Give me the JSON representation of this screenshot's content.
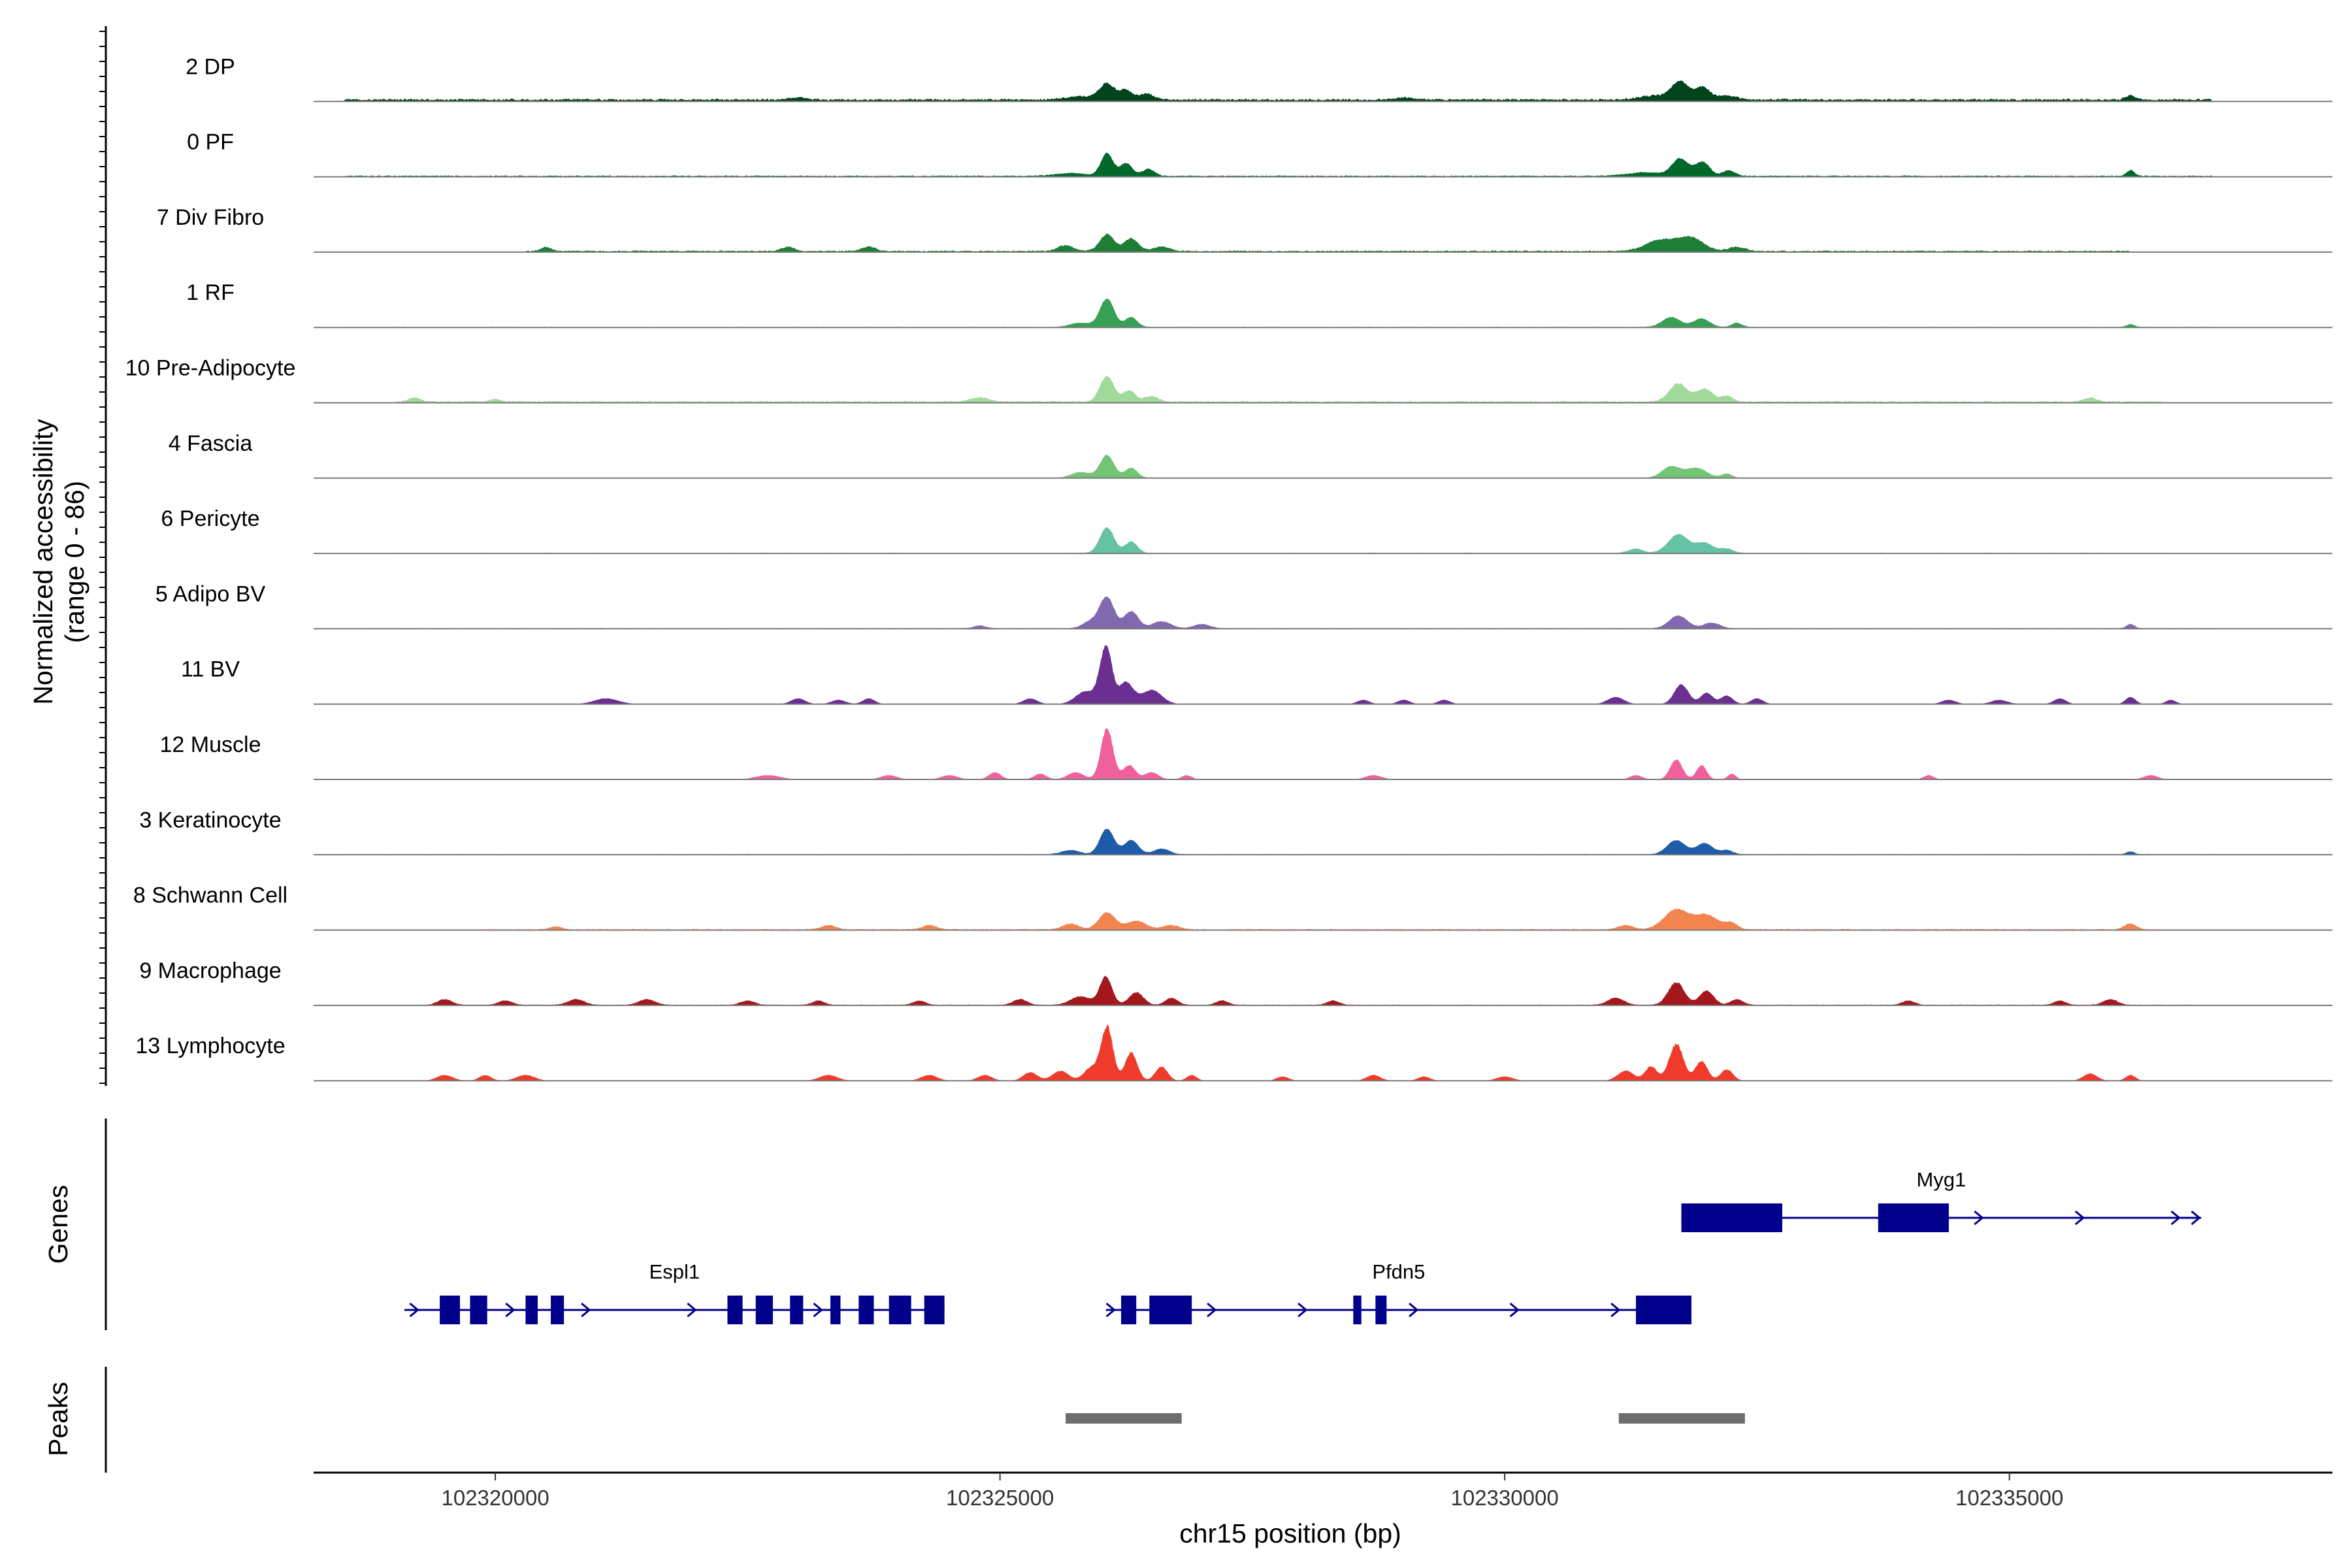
{
  "chart_data": {
    "type": "area",
    "chromosome": "chr15",
    "xlabel": "chr15 position (bp)",
    "ylabel": [
      "Normalized accessibility",
      "(range 0 - 86)"
    ],
    "y_range": [
      0,
      86
    ],
    "xlim": [
      102318200,
      102338200
    ],
    "x_ticks": [
      102320000,
      102325000,
      102330000,
      102335000
    ],
    "x_tick_labels": [
      "102320000",
      "102325000",
      "102330000",
      "102335000"
    ],
    "tracks": [
      {
        "name": "2 DP",
        "color": "#00441B",
        "scale": 0.35,
        "noise": 0.05,
        "background": [
          [
            102318500,
            102337000,
            2
          ]
        ],
        "peaks": [
          [
            102325830,
            150,
            2.5
          ],
          [
            102326060,
            70,
            11
          ],
          [
            102326240,
            60,
            7
          ],
          [
            102326450,
            80,
            4
          ],
          [
            102331520,
            170,
            3
          ],
          [
            102331740,
            80,
            12
          ],
          [
            102331960,
            70,
            9
          ],
          [
            102332200,
            90,
            3
          ],
          [
            102336200,
            50,
            3
          ],
          [
            102323000,
            100,
            1.5
          ],
          [
            102329000,
            100,
            1.5
          ]
        ]
      },
      {
        "name": "0 PF",
        "color": "#00692A",
        "scale": 0.35,
        "noise": 0.05,
        "background": [
          [
            102318500,
            102337000,
            1
          ]
        ],
        "peaks": [
          [
            102325700,
            150,
            2
          ],
          [
            102326060,
            60,
            16
          ],
          [
            102326250,
            60,
            9
          ],
          [
            102326470,
            60,
            5
          ],
          [
            102331400,
            180,
            2.5
          ],
          [
            102331740,
            80,
            12
          ],
          [
            102331960,
            70,
            10
          ],
          [
            102332220,
            60,
            4
          ],
          [
            102336200,
            40,
            4
          ]
        ]
      },
      {
        "name": "7 Div Fibro",
        "color": "#1E7E35",
        "scale": 0.35,
        "noise": 0.05,
        "background": [
          [
            102320300,
            102336200,
            1.2
          ]
        ],
        "peaks": [
          [
            102320500,
            50,
            3
          ],
          [
            102322900,
            60,
            3
          ],
          [
            102323700,
            70,
            3
          ],
          [
            102325650,
            80,
            4
          ],
          [
            102326060,
            70,
            12
          ],
          [
            102326300,
            70,
            9
          ],
          [
            102326600,
            80,
            3
          ],
          [
            102331550,
            150,
            8
          ],
          [
            102331850,
            120,
            9
          ],
          [
            102332300,
            80,
            3
          ]
        ]
      },
      {
        "name": "1 RF",
        "color": "#37A055",
        "scale": 0.35,
        "noise": 0.05,
        "background": [
          [
            102318500,
            102337000,
            0.5
          ]
        ],
        "peaks": [
          [
            102325800,
            100,
            3
          ],
          [
            102326060,
            70,
            20
          ],
          [
            102326300,
            60,
            7
          ],
          [
            102331650,
            90,
            7
          ],
          [
            102331950,
            80,
            6
          ],
          [
            102332300,
            50,
            3
          ],
          [
            102336200,
            40,
            2
          ]
        ]
      },
      {
        "name": "10 Pre-Adipocyte",
        "color": "#A1D99B",
        "scale": 0.35,
        "noise": 0.05,
        "background": [
          [
            102319000,
            102336500,
            1.2
          ]
        ],
        "peaks": [
          [
            102319200,
            60,
            3
          ],
          [
            102320000,
            50,
            2
          ],
          [
            102324800,
            90,
            3
          ],
          [
            102326060,
            70,
            18
          ],
          [
            102326280,
            60,
            8
          ],
          [
            102326500,
            70,
            4
          ],
          [
            102331720,
            90,
            13
          ],
          [
            102331980,
            80,
            9
          ],
          [
            102332200,
            60,
            4
          ],
          [
            102335800,
            60,
            3
          ]
        ]
      },
      {
        "name": "4 Fascia",
        "color": "#74C476",
        "scale": 0.35,
        "noise": 0.05,
        "background": [
          [
            102318500,
            102337000,
            0.4
          ]
        ],
        "peaks": [
          [
            102325800,
            90,
            4
          ],
          [
            102326060,
            70,
            16
          ],
          [
            102326300,
            60,
            7
          ],
          [
            102331650,
            90,
            8
          ],
          [
            102331900,
            100,
            7
          ],
          [
            102332200,
            50,
            3
          ]
        ]
      },
      {
        "name": "6 Pericyte",
        "color": "#66C2A5",
        "scale": 0.35,
        "noise": 0.05,
        "background": [
          [
            102319000,
            102336500,
            0.6
          ]
        ],
        "peaks": [
          [
            102326060,
            70,
            18
          ],
          [
            102326300,
            60,
            8
          ],
          [
            102331300,
            70,
            3
          ],
          [
            102331720,
            100,
            13
          ],
          [
            102331980,
            90,
            7
          ],
          [
            102332200,
            60,
            3
          ]
        ]
      },
      {
        "name": "5 Adipo BV",
        "color": "#8069AE",
        "scale": 0.35,
        "noise": 0.05,
        "background": [
          [
            102318800,
            102337000,
            0.5
          ]
        ],
        "peaks": [
          [
            102324800,
            60,
            2
          ],
          [
            102325900,
            80,
            5
          ],
          [
            102326060,
            70,
            22
          ],
          [
            102326300,
            70,
            12
          ],
          [
            102326600,
            90,
            5
          ],
          [
            102327000,
            80,
            3
          ],
          [
            102331720,
            90,
            9
          ],
          [
            102332050,
            80,
            4
          ],
          [
            102336200,
            40,
            3
          ]
        ]
      },
      {
        "name": "11 BV",
        "color": "#6A2F90",
        "scale": 0.35,
        "noise": 0.08,
        "background": [],
        "peaks": [
          [
            102321100,
            120,
            4
          ],
          [
            102323000,
            70,
            4
          ],
          [
            102323400,
            70,
            3
          ],
          [
            102323700,
            60,
            4
          ],
          [
            102325300,
            70,
            4
          ],
          [
            102325850,
            100,
            9
          ],
          [
            102326050,
            60,
            40
          ],
          [
            102326250,
            70,
            15
          ],
          [
            102326500,
            100,
            10
          ],
          [
            102328600,
            60,
            3
          ],
          [
            102329000,
            60,
            3
          ],
          [
            102329400,
            60,
            3
          ],
          [
            102331100,
            80,
            5
          ],
          [
            102331750,
            70,
            14
          ],
          [
            102332000,
            60,
            8
          ],
          [
            102332200,
            60,
            6
          ],
          [
            102332500,
            60,
            4
          ],
          [
            102334400,
            70,
            3
          ],
          [
            102334900,
            80,
            3
          ],
          [
            102335500,
            60,
            4
          ],
          [
            102336200,
            50,
            5
          ],
          [
            102336600,
            50,
            3
          ]
        ]
      },
      {
        "name": "12 Muscle",
        "color": "#F0609C",
        "scale": 0.35,
        "noise": 0.08,
        "background": [],
        "peaks": [
          [
            102322700,
            120,
            3
          ],
          [
            102323900,
            80,
            3
          ],
          [
            102324500,
            80,
            3
          ],
          [
            102324950,
            60,
            5
          ],
          [
            102325400,
            60,
            4
          ],
          [
            102325750,
            80,
            5
          ],
          [
            102326060,
            60,
            36
          ],
          [
            102326280,
            60,
            10
          ],
          [
            102326500,
            70,
            5
          ],
          [
            102326850,
            50,
            3
          ],
          [
            102328700,
            80,
            3
          ],
          [
            102331300,
            60,
            3
          ],
          [
            102331700,
            60,
            14
          ],
          [
            102331950,
            50,
            10
          ],
          [
            102332250,
            40,
            4
          ],
          [
            102334200,
            50,
            3
          ],
          [
            102336400,
            70,
            3
          ]
        ]
      },
      {
        "name": "3 Keratinocyte",
        "color": "#1D5CA8",
        "scale": 0.35,
        "noise": 0.05,
        "background": [
          [
            102318500,
            102337000,
            0.5
          ]
        ],
        "peaks": [
          [
            102325700,
            90,
            3
          ],
          [
            102326060,
            70,
            18
          ],
          [
            102326300,
            70,
            10
          ],
          [
            102326600,
            80,
            4
          ],
          [
            102331700,
            90,
            10
          ],
          [
            102331980,
            80,
            8
          ],
          [
            102332200,
            60,
            3
          ],
          [
            102336200,
            40,
            2
          ]
        ]
      },
      {
        "name": "8 Schwann Cell",
        "color": "#F2854F",
        "scale": 0.35,
        "noise": 0.06,
        "background": [
          [
            102319800,
            102336500,
            0.8
          ]
        ],
        "peaks": [
          [
            102320600,
            60,
            2
          ],
          [
            102323300,
            70,
            3
          ],
          [
            102324300,
            70,
            3
          ],
          [
            102325700,
            80,
            4
          ],
          [
            102326060,
            80,
            12
          ],
          [
            102326350,
            100,
            6
          ],
          [
            102326700,
            80,
            3
          ],
          [
            102331200,
            70,
            3
          ],
          [
            102331700,
            120,
            14
          ],
          [
            102332000,
            120,
            10
          ],
          [
            102332250,
            60,
            4
          ],
          [
            102336200,
            60,
            4
          ]
        ]
      },
      {
        "name": "9 Macrophage",
        "color": "#A4171C",
        "scale": 0.35,
        "noise": 0.08,
        "background": [
          [
            102319300,
            102336800,
            0.6
          ]
        ],
        "peaks": [
          [
            102319500,
            70,
            4
          ],
          [
            102320100,
            70,
            3
          ],
          [
            102320800,
            80,
            4
          ],
          [
            102321500,
            80,
            4
          ],
          [
            102322500,
            70,
            3
          ],
          [
            102323200,
            60,
            3
          ],
          [
            102324200,
            60,
            3
          ],
          [
            102325200,
            70,
            4
          ],
          [
            102325800,
            100,
            6
          ],
          [
            102326050,
            60,
            20
          ],
          [
            102326350,
            70,
            9
          ],
          [
            102326700,
            60,
            5
          ],
          [
            102327200,
            60,
            3
          ],
          [
            102328300,
            60,
            3
          ],
          [
            102331100,
            80,
            5
          ],
          [
            102331700,
            80,
            16
          ],
          [
            102332000,
            70,
            10
          ],
          [
            102332300,
            60,
            4
          ],
          [
            102334000,
            60,
            3
          ],
          [
            102335500,
            60,
            3
          ],
          [
            102336000,
            70,
            4
          ]
        ]
      },
      {
        "name": "13 Lymphocyte",
        "color": "#EF3B2C",
        "scale": 0.35,
        "noise": 0.09,
        "background": [],
        "peaks": [
          [
            102319500,
            80,
            4
          ],
          [
            102319900,
            60,
            4
          ],
          [
            102320300,
            90,
            4
          ],
          [
            102323300,
            90,
            4
          ],
          [
            102324300,
            80,
            4
          ],
          [
            102324850,
            70,
            4
          ],
          [
            102325300,
            70,
            6
          ],
          [
            102325600,
            80,
            7
          ],
          [
            102325900,
            70,
            9
          ],
          [
            102326060,
            60,
            38
          ],
          [
            102326300,
            60,
            20
          ],
          [
            102326600,
            60,
            10
          ],
          [
            102326900,
            50,
            4
          ],
          [
            102327800,
            60,
            3
          ],
          [
            102328700,
            70,
            4
          ],
          [
            102329200,
            60,
            3
          ],
          [
            102330000,
            80,
            3
          ],
          [
            102331200,
            80,
            7
          ],
          [
            102331450,
            60,
            10
          ],
          [
            102331700,
            70,
            26
          ],
          [
            102331950,
            60,
            14
          ],
          [
            102332200,
            60,
            8
          ],
          [
            102335800,
            70,
            5
          ],
          [
            102336200,
            50,
            4
          ]
        ]
      }
    ],
    "genes": [
      {
        "name": "Espl1",
        "color": "#00008B",
        "row": 2,
        "start": 102319100,
        "end": 102324450,
        "exons": [
          [
            102319450,
            102319650
          ],
          [
            102319750,
            102319920
          ],
          [
            102320300,
            102320420
          ],
          [
            102320550,
            102320680
          ],
          [
            102322300,
            102322450
          ],
          [
            102322580,
            102322750
          ],
          [
            102322920,
            102323050
          ],
          [
            102323320,
            102323420
          ],
          [
            102323600,
            102323750
          ],
          [
            102323900,
            102324120
          ],
          [
            102324250,
            102324450
          ]
        ],
        "arrows": [
          102319200,
          102320150,
          102320900,
          102321950,
          102323200
        ]
      },
      {
        "name": "Pfdn5",
        "color": "#00008B",
        "row": 2,
        "start": 102326050,
        "end": 102331850,
        "exons": [
          [
            102326200,
            102326350
          ],
          [
            102326480,
            102326900
          ],
          [
            102328500,
            102328580
          ],
          [
            102328720,
            102328830
          ],
          [
            102331300,
            102331850
          ]
        ],
        "arrows": [
          102326100,
          102327100,
          102328000,
          102329100,
          102330100,
          102331100
        ]
      },
      {
        "name": "Myg1",
        "color": "#00008B",
        "row": 1,
        "start": 102331750,
        "end": 102336900,
        "exons": [
          [
            102331750,
            102332750
          ],
          [
            102333700,
            102334400
          ]
        ],
        "arrows": [
          102331800,
          102334700,
          102335700,
          102336650,
          102336850
        ]
      }
    ],
    "peaks_track": [
      {
        "start": 102325650,
        "end": 102326800,
        "color": "#6E6E6E"
      },
      {
        "start": 102331130,
        "end": 102332380,
        "color": "#6E6E6E"
      }
    ],
    "gene_panel_title": "Genes",
    "peak_panel_title": "Peaks"
  }
}
